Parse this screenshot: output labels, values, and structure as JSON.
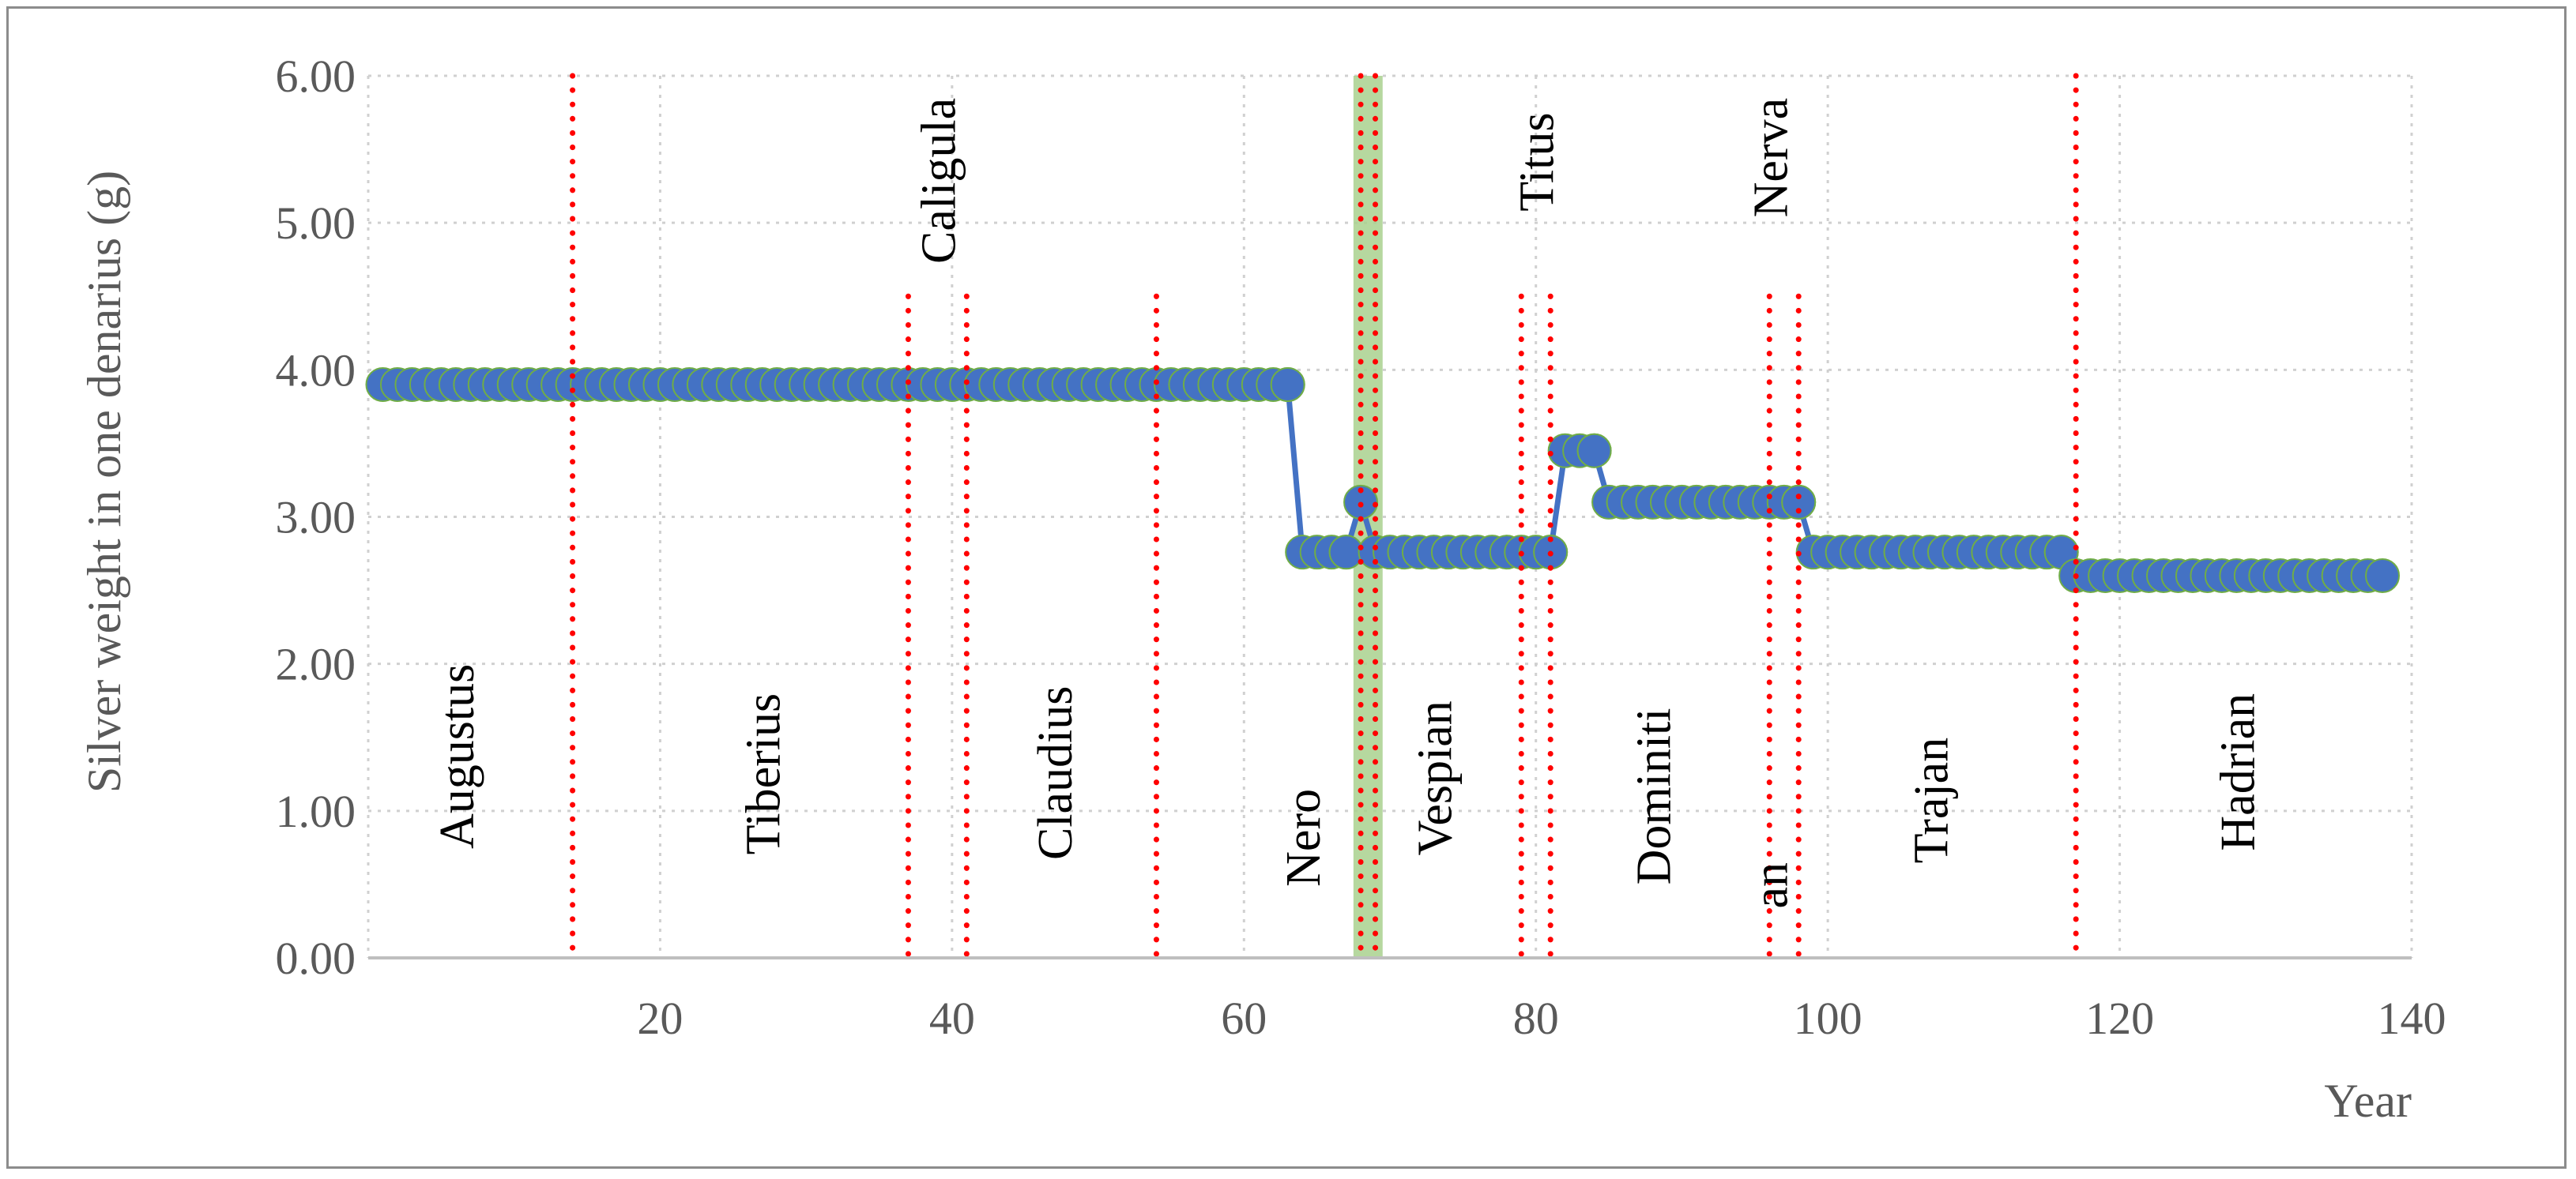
{
  "chart_data": {
    "type": "line",
    "title": "",
    "xlabel": "Year",
    "ylabel": "Silver weight in one denarius (g)",
    "xlim": [
      0,
      140
    ],
    "ylim": [
      0,
      6
    ],
    "x_ticks": [
      "20",
      "40",
      "60",
      "80",
      "100",
      "120",
      "140"
    ],
    "y_ticks": [
      "0.00",
      "1.00",
      "2.00",
      "3.00",
      "4.00",
      "5.00",
      "6.00"
    ],
    "grid": true,
    "legend": "none",
    "series": [
      {
        "points": [
          [
            1,
            3.9
          ],
          [
            63,
            3.9
          ],
          [
            64,
            2.76
          ],
          [
            67,
            2.76
          ],
          [
            68,
            3.1
          ],
          [
            69,
            2.76
          ],
          [
            81,
            2.76
          ],
          [
            82,
            3.45
          ],
          [
            84,
            3.45
          ],
          [
            85,
            3.1
          ],
          [
            98,
            3.1
          ],
          [
            99,
            2.76
          ],
          [
            116,
            2.76
          ],
          [
            117,
            2.6
          ],
          [
            138,
            2.6
          ]
        ]
      }
    ],
    "reign_boundaries": [
      {
        "year": 14,
        "top": 6.0
      },
      {
        "year": 37,
        "top": 4.5
      },
      {
        "year": 41,
        "top": 4.5
      },
      {
        "year": 54,
        "top": 4.5
      },
      {
        "year": 68,
        "top": 6.0
      },
      {
        "year": 69,
        "top": 6.0
      },
      {
        "year": 79,
        "top": 4.5
      },
      {
        "year": 81,
        "top": 4.5
      },
      {
        "year": 96,
        "top": 4.5
      },
      {
        "year": 98,
        "top": 4.5
      },
      {
        "year": 117,
        "top": 6.0
      }
    ],
    "highlight_band": {
      "from": 67.5,
      "to": 69.5
    },
    "emperor_labels": [
      {
        "text": "Augustus",
        "x": 6,
        "y_top": 2.0
      },
      {
        "text": "Tiberius",
        "x": 27,
        "y_top": 1.8
      },
      {
        "text": "Caligula",
        "x": 39,
        "y_top": 5.85
      },
      {
        "text": "Claudius",
        "x": 47,
        "y_top": 1.85
      },
      {
        "text": "Nero",
        "x": 64,
        "y_top": 1.15
      },
      {
        "text": "Vespian",
        "x": 73,
        "y_top": 1.75
      },
      {
        "text": "Titus",
        "x": 80,
        "y_top": 5.75
      },
      {
        "text": "Dominiti",
        "x": 88,
        "y_top": 1.7
      },
      {
        "text": "an",
        "x": 96,
        "y_top": 0.65
      },
      {
        "text": "Nerva",
        "x": 96,
        "y_top": 5.85
      },
      {
        "text": "Trajan",
        "x": 107,
        "y_top": 1.5
      },
      {
        "text": "Hadrian",
        "x": 128,
        "y_top": 1.8
      }
    ]
  },
  "colors": {
    "series": "#4472c4",
    "marker_edge": "#70ad47",
    "boundary": "#ff0000",
    "band": "#a9d18e",
    "grid": "#d0d0d0",
    "axis": "#bfbfbf"
  }
}
